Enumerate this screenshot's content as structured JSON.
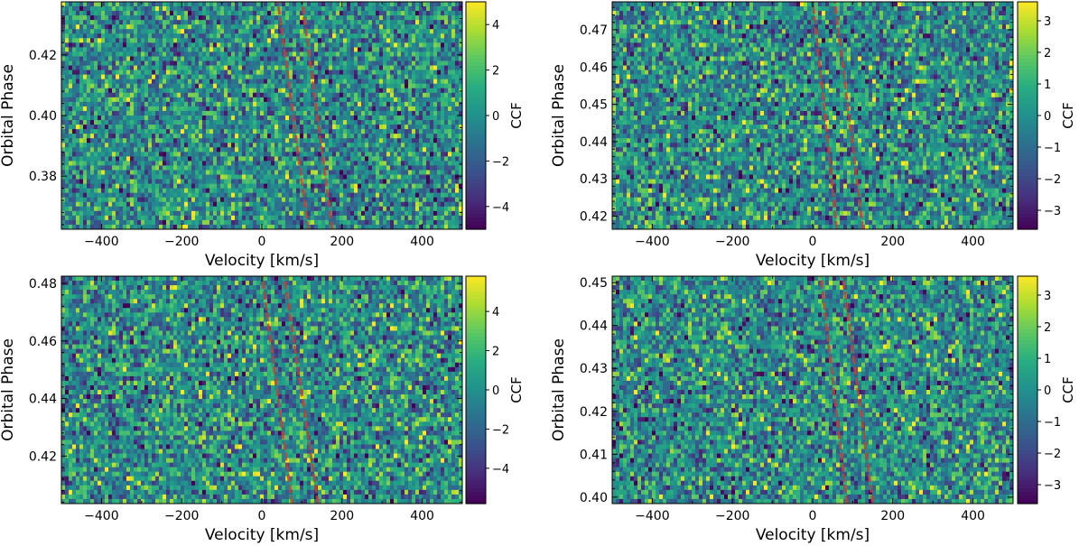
{
  "chart_data": [
    {
      "type": "heatmap",
      "xlabel": "Velocity [km/s]",
      "ylabel": "Orbital Phase",
      "colorbar_label": "CCF",
      "colormap": "viridis",
      "xlim": [
        -500,
        500
      ],
      "ylim": [
        0.3625,
        0.4375
      ],
      "xticks": [
        -400,
        -200,
        0,
        200,
        400
      ],
      "yticks": [
        0.38,
        0.4,
        0.42
      ],
      "ytick_labels": [
        "0.38",
        "0.40",
        "0.42"
      ],
      "clim": [
        -5,
        5
      ],
      "cticks": [
        -4,
        -2,
        0,
        2,
        4
      ],
      "trail_lines": [
        {
          "x": [
            115,
            40
          ],
          "y": [
            0.3625,
            0.4375
          ]
        },
        {
          "x": [
            175,
            100
          ],
          "y": [
            0.3625,
            0.4375
          ]
        }
      ]
    },
    {
      "type": "heatmap",
      "xlabel": "Velocity [km/s]",
      "ylabel": "Orbital Phase",
      "colorbar_label": "CCF",
      "colormap": "viridis",
      "xlim": [
        -500,
        500
      ],
      "ylim": [
        0.4165,
        0.4775
      ],
      "xticks": [
        -400,
        -200,
        0,
        200,
        400
      ],
      "yticks": [
        0.42,
        0.43,
        0.44,
        0.45,
        0.46,
        0.47
      ],
      "ytick_labels": [
        "0.42",
        "0.43",
        "0.44",
        "0.45",
        "0.46",
        "0.47"
      ],
      "clim": [
        -3.6,
        3.6
      ],
      "cticks": [
        -3,
        -2,
        -1,
        0,
        1,
        2,
        3
      ],
      "trail_lines": [
        {
          "x": [
            60,
            0
          ],
          "y": [
            0.4165,
            0.4775
          ]
        },
        {
          "x": [
            125,
            55
          ],
          "y": [
            0.4165,
            0.4775
          ]
        }
      ]
    },
    {
      "type": "heatmap",
      "xlabel": "Velocity [km/s]",
      "ylabel": "Orbital Phase",
      "colorbar_label": "CCF",
      "colormap": "viridis",
      "xlim": [
        -500,
        500
      ],
      "ylim": [
        0.4035,
        0.4825
      ],
      "xticks": [
        -400,
        -200,
        0,
        200,
        400
      ],
      "yticks": [
        0.42,
        0.44,
        0.46,
        0.48
      ],
      "ytick_labels": [
        "0.42",
        "0.44",
        "0.46",
        "0.48"
      ],
      "clim": [
        -5.8,
        5.8
      ],
      "cticks": [
        -4,
        -2,
        0,
        2,
        4
      ],
      "trail_lines": [
        {
          "x": [
            75,
            0
          ],
          "y": [
            0.4035,
            0.4825
          ]
        },
        {
          "x": [
            140,
            55
          ],
          "y": [
            0.4035,
            0.4825
          ]
        }
      ]
    },
    {
      "type": "heatmap",
      "xlabel": "Velocity [km/s]",
      "ylabel": "Orbital Phase",
      "colorbar_label": "CCF",
      "colormap": "viridis",
      "xlim": [
        -500,
        500
      ],
      "ylim": [
        0.3985,
        0.4515
      ],
      "xticks": [
        -400,
        -200,
        0,
        200,
        400
      ],
      "yticks": [
        0.4,
        0.41,
        0.42,
        0.43,
        0.44,
        0.45
      ],
      "ytick_labels": [
        "0.40",
        "0.41",
        "0.42",
        "0.43",
        "0.44",
        "0.45"
      ],
      "clim": [
        -3.6,
        3.6
      ],
      "cticks": [
        -3,
        -2,
        -1,
        0,
        1,
        2,
        3
      ],
      "trail_lines": [
        {
          "x": [
            85,
            20
          ],
          "y": [
            0.3985,
            0.4515
          ]
        },
        {
          "x": [
            150,
            75
          ],
          "y": [
            0.3985,
            0.4515
          ]
        }
      ]
    }
  ]
}
